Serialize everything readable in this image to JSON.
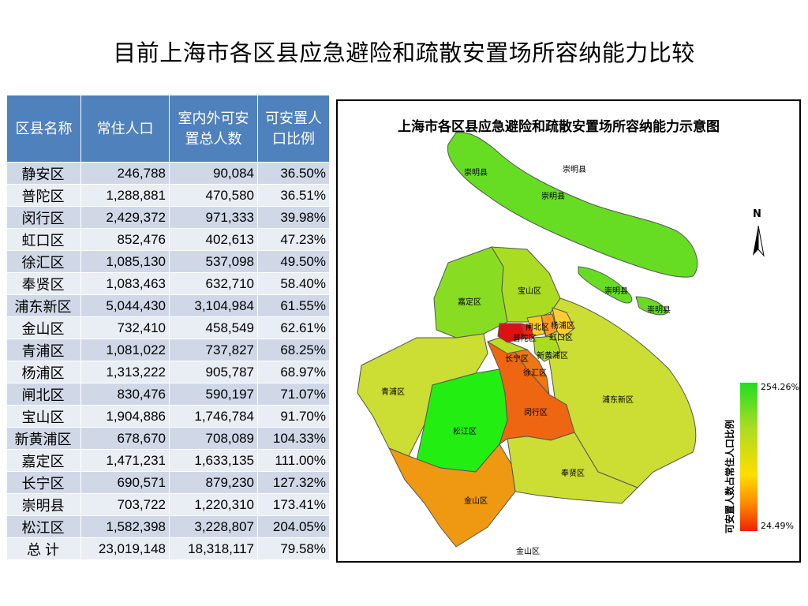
{
  "slide": {
    "title": "目前上海市各区县应急避险和疏散安置场所容纳能力比较"
  },
  "table": {
    "headers": [
      "区县名称",
      "常住人口",
      "室内外可安置总人数",
      "可安置人口比例"
    ],
    "rows": [
      {
        "name": "静安区",
        "pop": "246,788",
        "capacity": "90,084",
        "ratio": "36.50%"
      },
      {
        "name": "普陀区",
        "pop": "1,288,881",
        "capacity": "470,580",
        "ratio": "36.51%"
      },
      {
        "name": "闵行区",
        "pop": "2,429,372",
        "capacity": "971,333",
        "ratio": "39.98%"
      },
      {
        "name": "虹口区",
        "pop": "852,476",
        "capacity": "402,613",
        "ratio": "47.23%"
      },
      {
        "name": "徐汇区",
        "pop": "1,085,130",
        "capacity": "537,098",
        "ratio": "49.50%"
      },
      {
        "name": "奉贤区",
        "pop": "1,083,463",
        "capacity": "632,710",
        "ratio": "58.40%"
      },
      {
        "name": "浦东新区",
        "pop": "5,044,430",
        "capacity": "3,104,984",
        "ratio": "61.55%"
      },
      {
        "name": "金山区",
        "pop": "732,410",
        "capacity": "458,549",
        "ratio": "62.61%"
      },
      {
        "name": "青浦区",
        "pop": "1,081,022",
        "capacity": "737,827",
        "ratio": "68.25%"
      },
      {
        "name": "杨浦区",
        "pop": "1,313,222",
        "capacity": "905,787",
        "ratio": "68.97%"
      },
      {
        "name": "闸北区",
        "pop": "830,476",
        "capacity": "590,197",
        "ratio": "71.07%"
      },
      {
        "name": "宝山区",
        "pop": "1,904,886",
        "capacity": "1,746,784",
        "ratio": "91.70%"
      },
      {
        "name": "新黄浦区",
        "pop": "678,670",
        "capacity": "708,089",
        "ratio": "104.33%"
      },
      {
        "name": "嘉定区",
        "pop": "1,471,231",
        "capacity": "1,633,135",
        "ratio": "111.00%"
      },
      {
        "name": "长宁区",
        "pop": "690,571",
        "capacity": "879,230",
        "ratio": "127.32%"
      },
      {
        "name": "崇明县",
        "pop": "703,722",
        "capacity": "1,220,310",
        "ratio": "173.41%"
      },
      {
        "name": "松江区",
        "pop": "1,582,398",
        "capacity": "3,228,807",
        "ratio": "204.05%"
      }
    ],
    "total": {
      "name": "总 计",
      "pop": "23,019,148",
      "capacity": "18,318,117",
      "ratio": "79.58%"
    }
  },
  "map": {
    "title": "上海市各区县应急避险和疏散安置场所容纳能力示意图",
    "north_label": "N",
    "legend": {
      "title": "可安置人数占常住人口比例",
      "max": "254.26%",
      "min": "24.49%"
    },
    "labels": {
      "chongming_w": "崇明县",
      "chongming_n": "崇明县",
      "chongming_c": "崇明县",
      "changxing": "崇明县",
      "hengsha": "崇明县",
      "baoshan": "宝山区",
      "jiading": "嘉定区",
      "zhabei": "闸北区",
      "yangpu": "杨浦区",
      "putuo": "普陀区",
      "hongkou": "虹口区",
      "changning": "长宁区",
      "huangpu": "新黄浦区",
      "xuhui": "徐汇区",
      "qingpu": "青浦区",
      "minhang": "闵行区",
      "pudong": "浦东新区",
      "songjiang": "松江区",
      "fengxian": "奉贤区",
      "jinshan": "金山区",
      "jinshan_island": "金山区"
    },
    "colors": {
      "chongming": "#66dd22",
      "baoshan": "#aadd22",
      "jiading": "#88dd22",
      "qingpu": "#ccdd33",
      "pudong": "#ccdd33",
      "songjiang": "#22ee11",
      "minhang": "#ee6611",
      "xuhui": "#ee7711",
      "fengxian": "#ccdd33",
      "jinshan": "#ee9911",
      "changning": "#bbdd22",
      "huangpu": "#aadd22",
      "putuo": "#dd1111",
      "jingan": "#ee2211",
      "hongkou": "#ff9922",
      "zhabei": "#ffcc22",
      "yangpu": "#ffcc33"
    }
  }
}
